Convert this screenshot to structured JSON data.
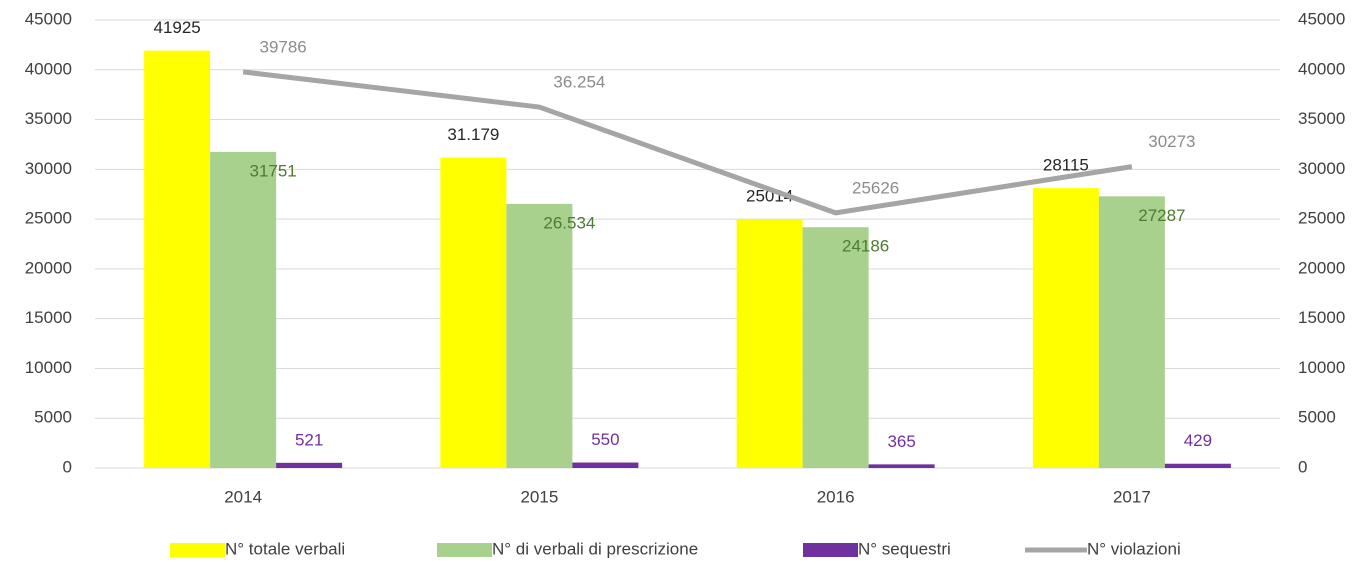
{
  "chart_data": {
    "type": "bar_line",
    "categories": [
      "2014",
      "2015",
      "2016",
      "2017"
    ],
    "series": [
      {
        "name": "N° totale verbali",
        "color": "#ffff00",
        "values": [
          41925,
          31179,
          25014,
          28115
        ],
        "value_labels": [
          "41925",
          "31.179",
          "25014",
          "28115"
        ],
        "label_color": "#262626"
      },
      {
        "name": "N° di verbali di prescrizione",
        "color": "#a9d18e",
        "values": [
          31751,
          26534,
          24186,
          27287
        ],
        "value_labels": [
          "31751",
          "26.534",
          "24186",
          "27287"
        ],
        "label_color": "#4e7a32"
      },
      {
        "name": "N° sequestri",
        "color": "#7030a0",
        "values": [
          521,
          550,
          365,
          429
        ],
        "label_color": "#7030a0"
      },
      {
        "name": "N° violazioni",
        "color": "#a5a5a5",
        "type": "line",
        "axis": "y2",
        "values": [
          39786,
          36254,
          25626,
          30273
        ],
        "value_labels": [
          "39786",
          "36.254",
          "25626",
          "30273"
        ],
        "label_color": "#8c8c8c"
      }
    ],
    "ylim": [
      0,
      45000
    ],
    "yticks": [
      0,
      5000,
      10000,
      15000,
      20000,
      25000,
      30000,
      35000,
      40000,
      45000
    ],
    "y2lim": [
      0,
      45000
    ],
    "y2ticks": [
      0,
      5000,
      10000,
      15000,
      20000,
      25000,
      30000,
      35000,
      40000,
      45000
    ],
    "grid": true,
    "legend": "bottom"
  }
}
